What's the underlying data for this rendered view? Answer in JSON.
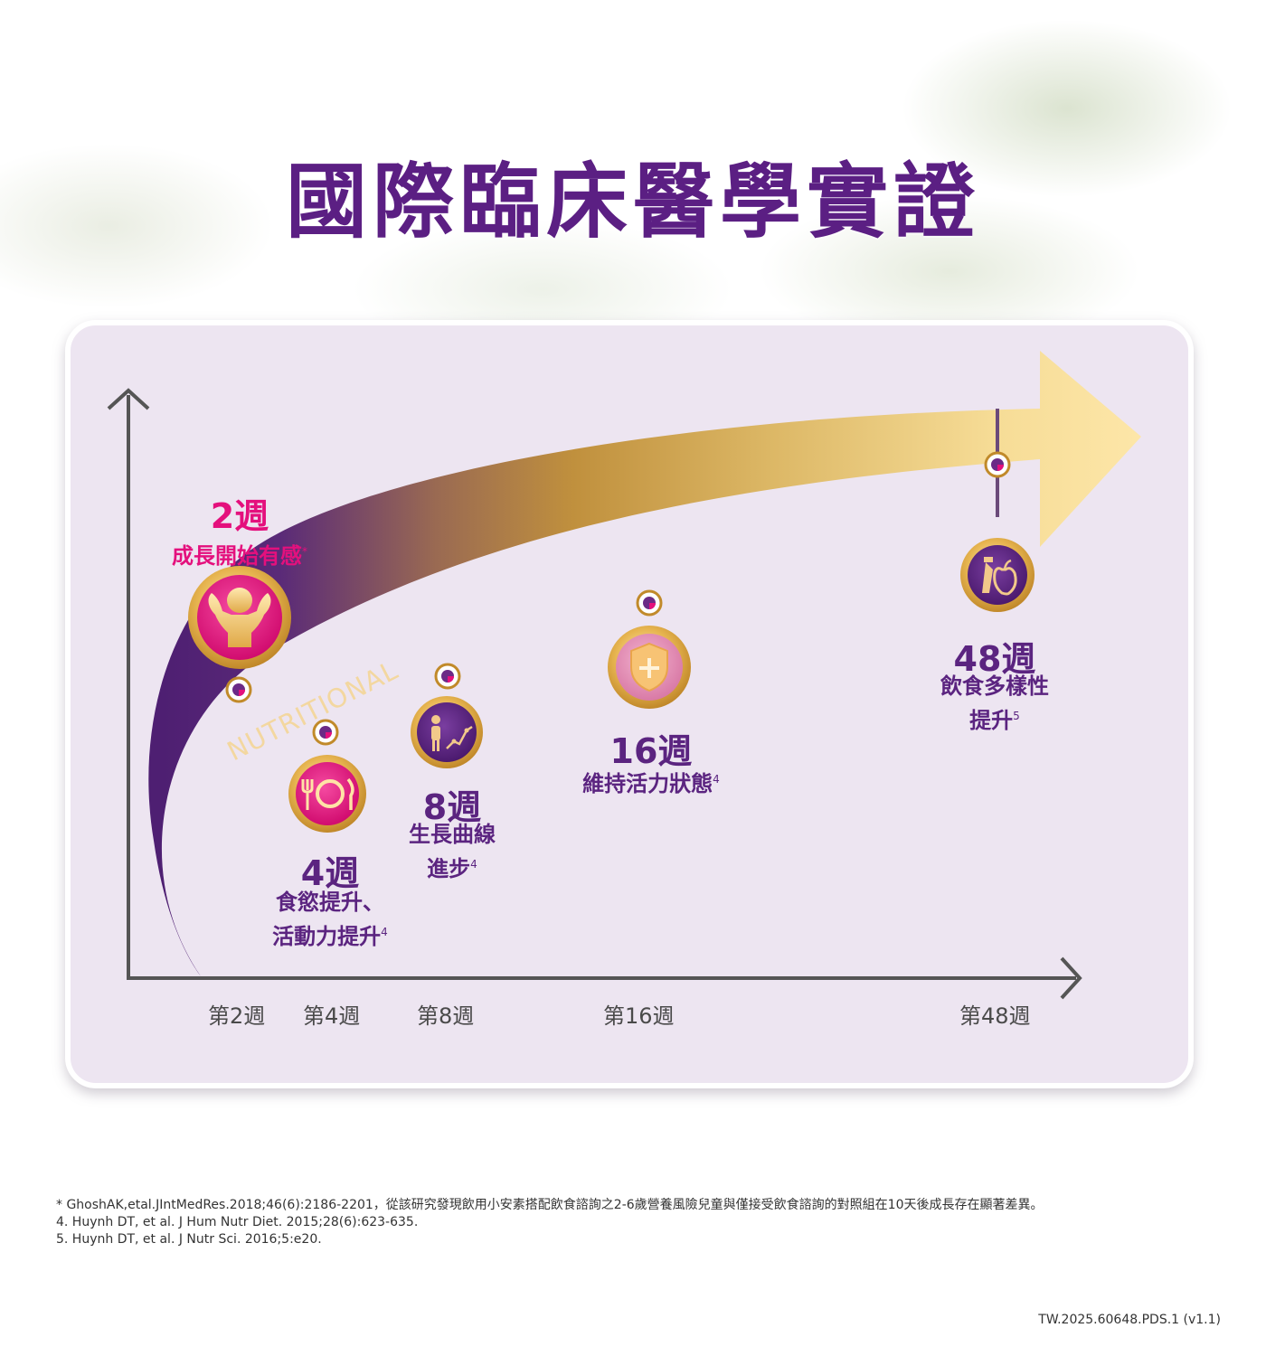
{
  "title": "國際臨床醫學實證",
  "arrow_text": "NUTRITIONAL",
  "milestones": [
    {
      "week": "2週",
      "desc": "成長開始有感",
      "sup": "*",
      "icon": "muscle-kid-icon",
      "color": "#e4107d"
    },
    {
      "week": "4週",
      "desc1": "食慾提升、",
      "desc2": "活動力提升",
      "sup": "4",
      "icon": "plate-cutlery-icon",
      "color": "#e4107d"
    },
    {
      "week": "8週",
      "desc1": "生長曲線",
      "desc2": "進步",
      "sup": "4",
      "icon": "growth-curve-icon",
      "color": "#5b2480"
    },
    {
      "week": "16週",
      "desc": "維持活力狀態",
      "sup": "4",
      "icon": "shield-plus-icon",
      "color": "#5b2480"
    },
    {
      "week": "48週",
      "desc1": "飲食多樣性",
      "desc2": "提升",
      "sup": "5",
      "icon": "food-variety-icon",
      "color": "#5b2480"
    }
  ],
  "x_axis": [
    "第2週",
    "第4週",
    "第8週",
    "第16週",
    "第48週"
  ],
  "footnotes": [
    "* GhoshAK,etal.JIntMedRes.2018;46(6):2186-2201，從該研究發現飲用小安素搭配飲食諮詢之2-6歲營養風險兒童與僅接受飲食諮詢的對照組在10天後成長存在顯著差異。",
    "4. Huynh DT, et al. J Hum Nutr Diet. 2015;28(6):623-635.",
    "5. Huynh DT, et al. J Nutr Sci. 2016;5:e20."
  ],
  "code": "TW.2025.60648.PDS.1 (v1.1)"
}
